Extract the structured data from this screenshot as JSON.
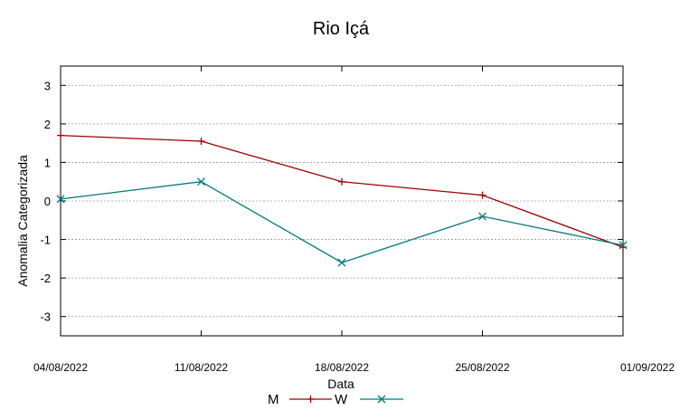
{
  "chart_data": {
    "type": "line",
    "title": "Rio Içá",
    "xlabel": "Data",
    "ylabel": "Anomalia Categorizada",
    "categories": [
      "04/08/2022",
      "11/08/2022",
      "18/08/2022",
      "25/08/2022",
      "01/09/2022"
    ],
    "ylim": [
      -3.5,
      3.5
    ],
    "yticks": [
      "3",
      "2",
      "1",
      "0",
      "-1",
      "-2",
      "-3"
    ],
    "grid": true,
    "legend": "bottom-center",
    "series": [
      {
        "name": "M",
        "values": [
          1.7,
          1.55,
          0.5,
          0.15,
          -1.2
        ],
        "color": "#a00000",
        "marker": "+"
      },
      {
        "name": "W",
        "values": [
          0.05,
          0.5,
          -1.6,
          -0.4,
          -1.15
        ],
        "color": "#007a7a",
        "marker": "x"
      }
    ]
  }
}
